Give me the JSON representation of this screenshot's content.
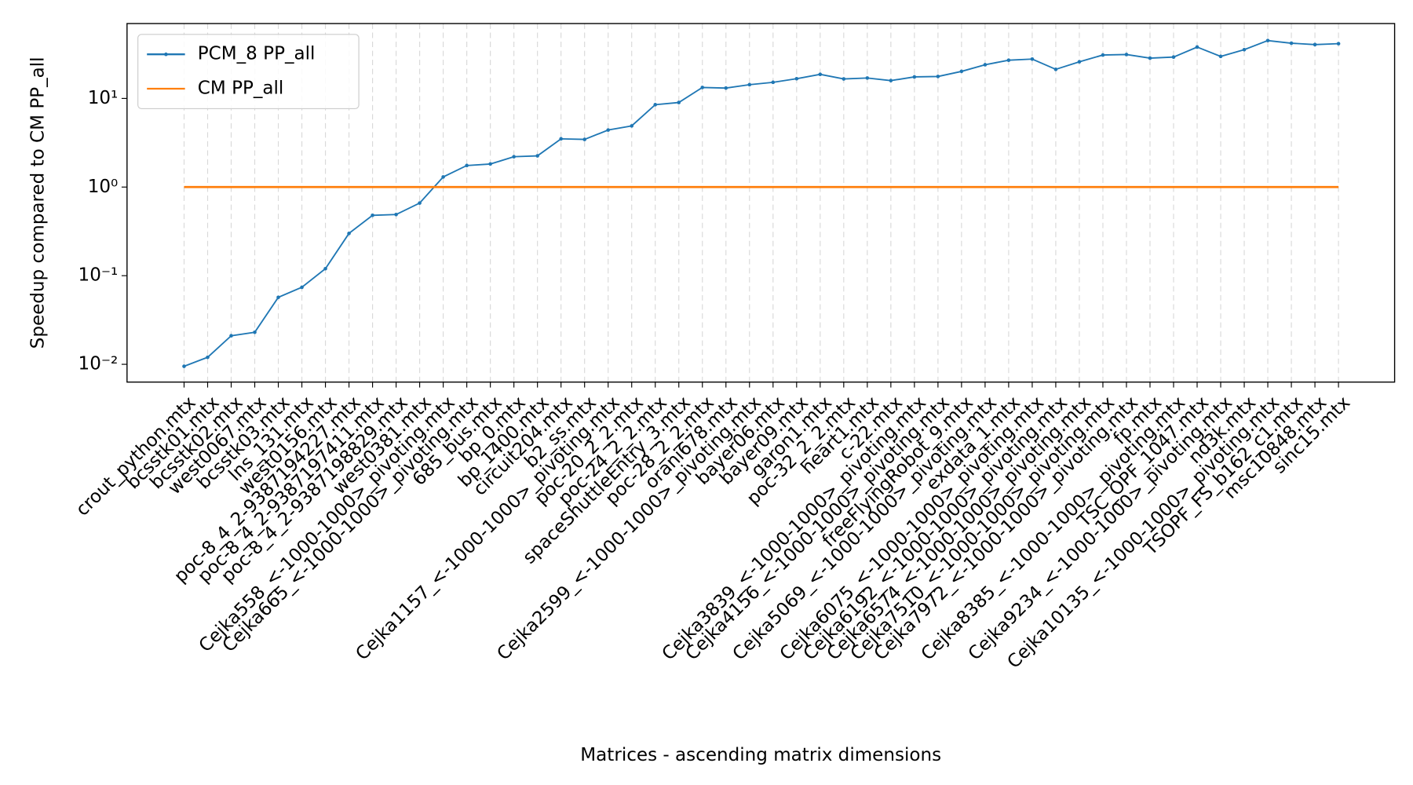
{
  "chart_data": {
    "type": "line",
    "xlabel": "Matrices - ascending matrix dimensions",
    "ylabel": "Speedup compared to CM PP_all",
    "categories": [
      "crout_python.mtx",
      "bcsstk01.mtx",
      "bcsstk02.mtx",
      "west0067.mtx",
      "bcsstk03.mtx",
      "lns_131.mtx",
      "west0156.mtx",
      "poc-8_4_2-9387194227.mtx",
      "poc-8_4_2-9387197411.mtx",
      "poc-8_4_2-9387198829.mtx",
      "west0381.mtx",
      "Cejka558_<-1000-1000>_pivoting.mtx",
      "Cejka665_<-1000-1000>_pivoting.mtx",
      "685_bus.mtx",
      "bp_0.mtx",
      "bp_1400.mtx",
      "circuit204.mtx",
      "b2_ss.mtx",
      "Cejka1157_<-1000-1000>_pivoting.mtx",
      "poc-20_2_2.mtx",
      "poc-24_2_2.mtx",
      "spaceShuttleEntry_3.mtx",
      "poc-28_2_2.mtx",
      "orani678.mtx",
      "Cejka2599_<-1000-1000>_pivoting.mtx",
      "bayer06.mtx",
      "bayer09.mtx",
      "garon1.mtx",
      "poc-32_2_2.mtx",
      "heart1.mtx",
      "c-22.mtx",
      "Cejka3839_<-1000-1000>_pivoting.mtx",
      "Cejka4156_<-1000-1000>_pivoting.mtx",
      "freeFlyingRobot_9.mtx",
      "Cejka5069_<-1000-1000>_pivoting.mtx",
      "exdata_1.mtx",
      "Cejka6075_<-1000-1000>_pivoting.mtx",
      "Cejka6192_<-1000-1000>_pivoting.mtx",
      "Cejka6574_<-1000-1000>_pivoting.mtx",
      "Cejka7510_<-1000-1000>_pivoting.mtx",
      "Cejka7972_<-1000-1000>_pivoting.mtx",
      "fp.mtx",
      "Cejka8385_<-1000-1000>_pivoting.mtx",
      "TSC_OPF_1047.mtx",
      "Cejka9234_<-1000-1000>_pivoting.mtx",
      "nd3k.mtx",
      "Cejka10135_<-1000-1000>_pivoting.mtx",
      "TSOPF_FS_b162_c1.mtx",
      "msc10848.mtx",
      "sinc15.mtx"
    ],
    "series": [
      {
        "name": "PCM_8 PP_all",
        "color": "#1f77b4",
        "marker": true,
        "values": [
          0.0095,
          0.012,
          0.021,
          0.023,
          0.057,
          0.074,
          0.12,
          0.3,
          0.48,
          0.49,
          0.66,
          1.3,
          1.75,
          1.82,
          2.2,
          2.25,
          3.5,
          3.45,
          4.4,
          4.9,
          8.5,
          9.0,
          13.3,
          13.1,
          14.3,
          15.2,
          16.7,
          18.7,
          16.6,
          17.0,
          15.9,
          17.5,
          17.7,
          20.2,
          24,
          27,
          27.8,
          21.3,
          25.9,
          30.9,
          31.3,
          28.5,
          29.3,
          38,
          29.8,
          35.5,
          45,
          42,
          40.5,
          41.5
        ]
      },
      {
        "name": "CM PP_all",
        "color": "#ff7f0e",
        "marker": false,
        "values": [
          1,
          1,
          1,
          1,
          1,
          1,
          1,
          1,
          1,
          1,
          1,
          1,
          1,
          1,
          1,
          1,
          1,
          1,
          1,
          1,
          1,
          1,
          1,
          1,
          1,
          1,
          1,
          1,
          1,
          1,
          1,
          1,
          1,
          1,
          1,
          1,
          1,
          1,
          1,
          1,
          1,
          1,
          1,
          1,
          1,
          1,
          1,
          1,
          1,
          1
        ]
      }
    ],
    "ylog": true,
    "ylim": [
      0.0063,
      70
    ],
    "yticks": [
      {
        "value": 0.01,
        "label": "10⁻²"
      },
      {
        "value": 0.1,
        "label": "10⁻¹"
      },
      {
        "value": 1,
        "label": "10⁰"
      },
      {
        "value": 10,
        "label": "10¹"
      }
    ],
    "grid": true,
    "legend": "upper left"
  }
}
